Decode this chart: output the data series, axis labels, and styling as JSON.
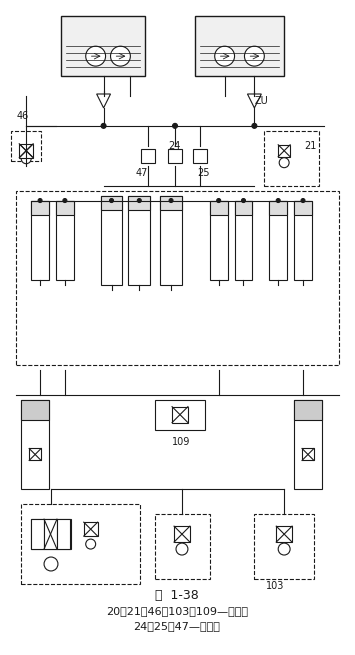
{
  "title": "图  1-38",
  "caption_line1": "20、21、46、103、109—节流阀",
  "caption_line2": "24、25，47—充液阀",
  "bg_color": "#ffffff",
  "line_color": "#1a1a1a",
  "fig_width": 3.55,
  "fig_height": 6.55,
  "dpi": 100
}
